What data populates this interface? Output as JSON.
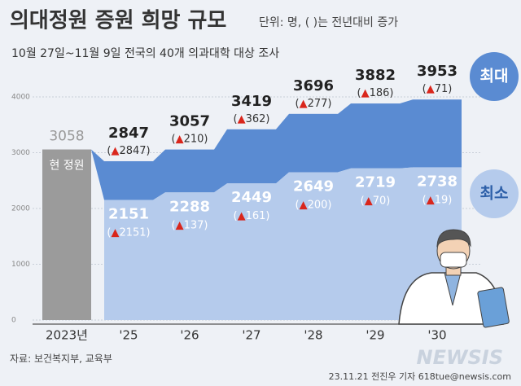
{
  "chart_data": {
    "type": "bar",
    "title": "의대정원 증원 희망 규모",
    "unit_note": "단위: 명, ( )는 전년대비 증가",
    "subtitle": "10월 27일~11월 9일 전국의 40개 의과대학 대상 조사",
    "categories": [
      "2023년",
      "'25",
      "'26",
      "'27",
      "'28",
      "'29",
      "'30"
    ],
    "current": {
      "label": "현 정원",
      "value": 3058,
      "color": "#9b9b9b"
    },
    "series": [
      {
        "name": "최대",
        "color": "#5a8bd2",
        "values": [
          null,
          2847,
          3057,
          3419,
          3696,
          3882,
          3953
        ],
        "changes": [
          null,
          2847,
          210,
          362,
          277,
          186,
          71
        ]
      },
      {
        "name": "최소",
        "color": "#b5cbec",
        "values": [
          null,
          2151,
          2288,
          2449,
          2649,
          2719,
          2738
        ],
        "changes": [
          null,
          2151,
          137,
          161,
          200,
          70,
          19
        ]
      }
    ],
    "ylim": [
      0,
      4000
    ],
    "yticks": [
      0,
      1000,
      2000,
      3000,
      4000
    ],
    "grid": true,
    "source": "자료: 보건복지부, 교육부",
    "credit": "23.11.21 전진우 기자 618tue@newsis.com",
    "watermark": "NEWSIS"
  }
}
